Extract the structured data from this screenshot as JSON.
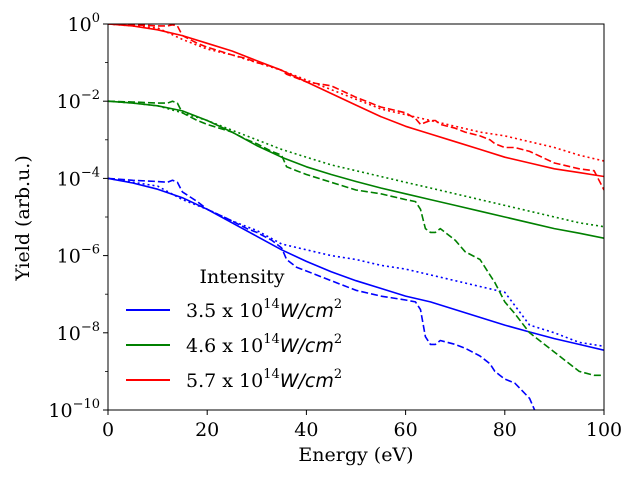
{
  "chart_data": {
    "type": "line",
    "title": "",
    "xlabel": "Energy (eV)",
    "ylabel": "Yield (arb.u.)",
    "xlim": [
      0,
      100
    ],
    "ylim_log10": [
      -10,
      0
    ],
    "yscale": "log",
    "x_ticks": [
      0,
      20,
      40,
      60,
      80,
      100
    ],
    "y_ticks": [
      {
        "base": "10",
        "exp": "0",
        "value": 1
      },
      {
        "base": "10",
        "exp": "−2",
        "value": 0.01
      },
      {
        "base": "10",
        "exp": "−4",
        "value": 0.0001
      },
      {
        "base": "10",
        "exp": "−6",
        "value": 1e-06
      },
      {
        "base": "10",
        "exp": "−8",
        "value": 1e-08
      },
      {
        "base": "10",
        "exp": "−10",
        "value": 1e-10
      }
    ],
    "legend": {
      "title": "Intensity",
      "location": "lower-left",
      "entries": [
        {
          "prefix": "3.5 x 10",
          "exp": "14",
          "unit": "W/cm",
          "unit_exp": "2",
          "color": "#0000ff"
        },
        {
          "prefix": "4.6 x 10",
          "exp": "14",
          "unit": "W/cm",
          "unit_exp": "2",
          "color": "#008000"
        },
        {
          "prefix": "5.7 x 10",
          "exp": "14",
          "unit": "W/cm",
          "unit_exp": "2",
          "color": "#ff0000"
        }
      ]
    },
    "line_styles": [
      "solid",
      "dashed",
      "dotted"
    ],
    "series": [
      {
        "name": "3.5 x 10^14 W/cm^2",
        "color": "#0000ff",
        "solid": {
          "x": [
            0,
            5,
            10,
            15,
            20,
            25,
            30,
            35,
            40,
            45,
            50,
            55,
            60,
            65,
            70,
            75,
            80,
            85,
            90,
            95,
            100
          ],
          "log10y": [
            -4,
            -4.12,
            -4.28,
            -4.5,
            -4.8,
            -5.15,
            -5.5,
            -5.85,
            -6.15,
            -6.42,
            -6.65,
            -6.85,
            -7.05,
            -7.2,
            -7.4,
            -7.6,
            -7.8,
            -7.98,
            -8.15,
            -8.3,
            -8.45
          ]
        },
        "dashed": {
          "x": [
            0,
            5,
            10,
            12,
            13,
            14,
            15,
            18,
            20,
            25,
            28,
            30,
            33,
            35,
            36,
            38,
            40,
            45,
            50,
            55,
            60,
            62,
            63,
            64,
            65,
            66,
            67,
            70,
            72,
            75,
            77,
            78,
            79,
            80,
            82,
            85,
            86
          ],
          "log10y": [
            -4,
            -4.05,
            -4.08,
            -4.1,
            -4.05,
            -4.1,
            -4.35,
            -4.6,
            -4.8,
            -5.1,
            -5.3,
            -5.4,
            -5.6,
            -5.8,
            -6.1,
            -6.3,
            -6.4,
            -6.65,
            -6.9,
            -7.05,
            -7.15,
            -7.2,
            -7.4,
            -8.1,
            -8.3,
            -8.3,
            -8.2,
            -8.3,
            -8.4,
            -8.6,
            -8.8,
            -9.0,
            -9.1,
            -9.2,
            -9.3,
            -9.7,
            -10
          ]
        },
        "dotted": {
          "x": [
            0,
            5,
            10,
            15,
            20,
            25,
            30,
            35,
            40,
            45,
            50,
            55,
            60,
            65,
            70,
            75,
            80,
            85,
            90,
            95,
            100
          ],
          "log10y": [
            -4,
            -4.1,
            -4.2,
            -4.55,
            -4.8,
            -5.1,
            -5.35,
            -5.7,
            -5.85,
            -6.0,
            -6.1,
            -6.25,
            -6.35,
            -6.5,
            -6.65,
            -6.8,
            -6.95,
            -7.8,
            -8.0,
            -8.25,
            -8.35
          ]
        }
      },
      {
        "name": "4.6 x 10^14 W/cm^2",
        "color": "#008000",
        "solid": {
          "x": [
            0,
            5,
            10,
            15,
            20,
            25,
            30,
            35,
            40,
            45,
            50,
            55,
            60,
            65,
            70,
            75,
            80,
            85,
            90,
            95,
            100
          ],
          "log10y": [
            -2,
            -2.05,
            -2.12,
            -2.25,
            -2.5,
            -2.8,
            -3.15,
            -3.45,
            -3.7,
            -3.9,
            -4.08,
            -4.25,
            -4.4,
            -4.55,
            -4.7,
            -4.85,
            -5.0,
            -5.15,
            -5.3,
            -5.42,
            -5.55
          ]
        },
        "dashed": {
          "x": [
            0,
            5,
            10,
            12,
            13,
            14,
            15,
            18,
            20,
            25,
            28,
            30,
            33,
            35,
            36,
            38,
            40,
            45,
            50,
            55,
            60,
            62,
            63,
            64,
            65,
            66,
            67,
            70,
            72,
            75,
            77,
            78,
            80,
            82,
            85,
            90,
            95,
            98,
            100
          ],
          "log10y": [
            -2,
            -2.02,
            -2.05,
            -2.05,
            -2.0,
            -2.05,
            -2.3,
            -2.5,
            -2.6,
            -2.8,
            -3.0,
            -3.1,
            -3.3,
            -3.4,
            -3.7,
            -3.8,
            -3.9,
            -4.1,
            -4.3,
            -4.4,
            -4.55,
            -4.6,
            -4.8,
            -5.3,
            -5.4,
            -5.4,
            -5.3,
            -5.6,
            -5.9,
            -6.1,
            -6.5,
            -6.7,
            -7.2,
            -7.5,
            -8.0,
            -8.5,
            -9.0,
            -9.1,
            -9.1
          ]
        },
        "dotted": {
          "x": [
            0,
            5,
            10,
            15,
            20,
            25,
            30,
            35,
            40,
            45,
            50,
            55,
            60,
            65,
            70,
            75,
            80,
            85,
            90,
            95,
            100
          ],
          "log10y": [
            -2,
            -2.05,
            -2.12,
            -2.3,
            -2.5,
            -2.75,
            -3.0,
            -3.25,
            -3.45,
            -3.65,
            -3.8,
            -3.95,
            -4.1,
            -4.25,
            -4.4,
            -4.55,
            -4.7,
            -4.85,
            -5.0,
            -5.15,
            -5.25
          ]
        }
      },
      {
        "name": "5.7 x 10^14 W/cm^2",
        "color": "#ff0000",
        "solid": {
          "x": [
            0,
            5,
            10,
            15,
            20,
            25,
            30,
            35,
            40,
            45,
            50,
            55,
            60,
            65,
            70,
            75,
            80,
            85,
            90,
            95,
            100
          ],
          "log10y": [
            0,
            -0.05,
            -0.15,
            -0.3,
            -0.5,
            -0.7,
            -0.95,
            -1.2,
            -1.5,
            -1.8,
            -2.1,
            -2.4,
            -2.65,
            -2.85,
            -3.05,
            -3.25,
            -3.45,
            -3.6,
            -3.75,
            -3.85,
            -3.95
          ]
        },
        "dashed": {
          "x": [
            0,
            5,
            10,
            12,
            13,
            14,
            15,
            18,
            20,
            25,
            28,
            30,
            33,
            35,
            36,
            38,
            40,
            45,
            50,
            55,
            60,
            62,
            63,
            64,
            65,
            66,
            67,
            70,
            72,
            75,
            77,
            78,
            80,
            82,
            85,
            90,
            95,
            98,
            100
          ],
          "log10y": [
            0,
            -0.02,
            -0.05,
            -0.05,
            -0.02,
            -0.05,
            -0.3,
            -0.5,
            -0.6,
            -0.8,
            -0.9,
            -1.0,
            -1.1,
            -1.2,
            -1.3,
            -1.4,
            -1.5,
            -1.6,
            -1.9,
            -2.15,
            -2.3,
            -2.45,
            -2.6,
            -2.55,
            -2.5,
            -2.5,
            -2.6,
            -2.7,
            -2.8,
            -2.9,
            -3.0,
            -3.1,
            -3.2,
            -3.2,
            -3.3,
            -3.6,
            -3.75,
            -3.8,
            -4.3
          ]
        },
        "dotted": {
          "x": [
            0,
            5,
            10,
            15,
            20,
            25,
            30,
            35,
            40,
            45,
            50,
            55,
            60,
            65,
            70,
            75,
            80,
            85,
            90,
            95,
            100
          ],
          "log10y": [
            0,
            -0.05,
            -0.1,
            -0.4,
            -0.65,
            -0.8,
            -1.0,
            -1.2,
            -1.45,
            -1.7,
            -1.95,
            -2.2,
            -2.35,
            -2.5,
            -2.65,
            -2.8,
            -2.9,
            -3.05,
            -3.2,
            -3.4,
            -3.55
          ]
        }
      }
    ]
  }
}
